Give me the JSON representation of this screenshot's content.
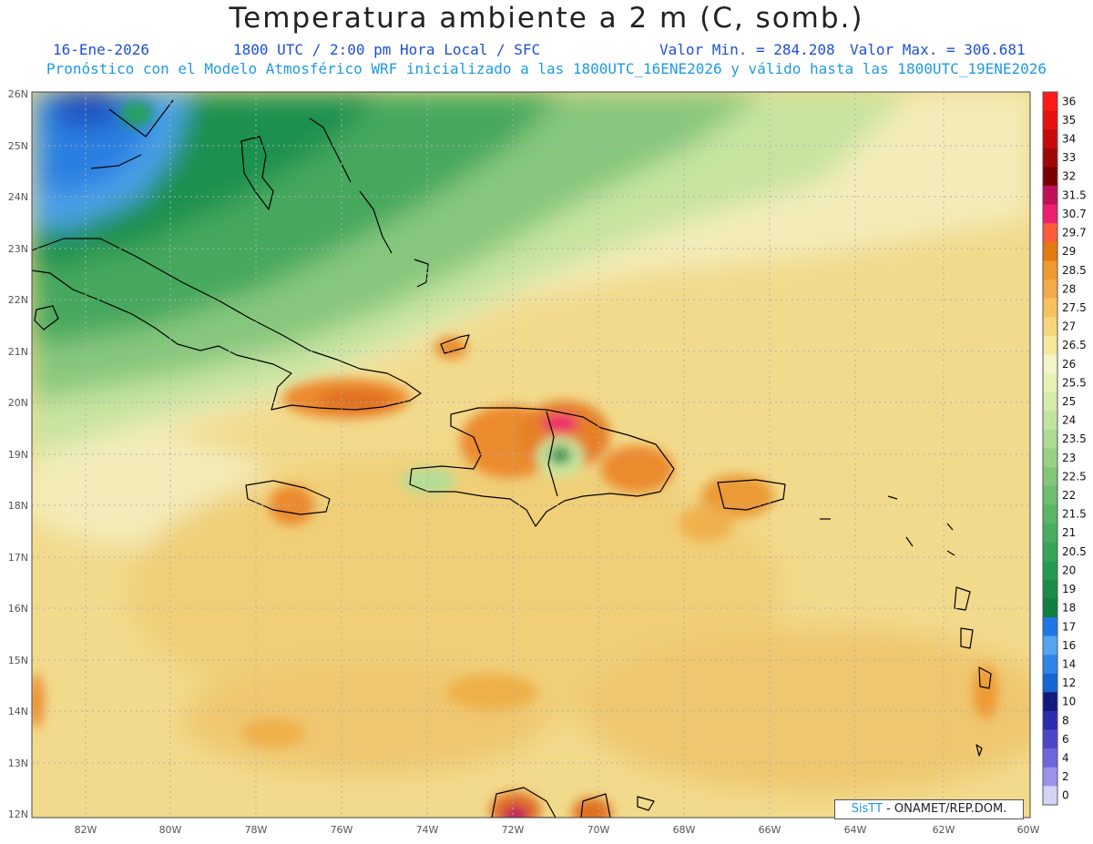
{
  "header": {
    "title": "Temperatura ambiente a 2 m (C, somb.)",
    "date": "16-Ene-2026",
    "time": "1800 UTC / 2:00 pm Hora Local / SFC",
    "min_label": "Valor Min. = 284.208",
    "max_label": "Valor Max. = 306.681",
    "subtitle": "Pronóstico con el Modelo Atmosférico WRF inicializado a las 1800UTC_16ENE2026 y válido hasta las  1800UTC_19ENE2026"
  },
  "axes": {
    "lat_labels": [
      "26N",
      "25N",
      "24N",
      "23N",
      "22N",
      "21N",
      "20N",
      "19N",
      "18N",
      "17N",
      "16N",
      "15N",
      "14N",
      "13N",
      "12N"
    ],
    "lon_labels": [
      "82W",
      "80W",
      "78W",
      "76W",
      "74W",
      "72W",
      "70W",
      "68W",
      "66W",
      "64W",
      "62W",
      "60W"
    ]
  },
  "colorbar": {
    "labels": [
      "36",
      "35",
      "34",
      "33",
      "32",
      "31.5",
      "30.7",
      "29.7",
      "29",
      "28.5",
      "28",
      "27.5",
      "27",
      "26.5",
      "26",
      "25.5",
      "25",
      "24",
      "23.5",
      "23",
      "22.5",
      "22",
      "21.5",
      "21",
      "20.5",
      "20",
      "19",
      "18",
      "17",
      "16",
      "14",
      "12",
      "10",
      "8",
      "6",
      "4",
      "2",
      "0"
    ],
    "colors": [
      "#ff1a1a",
      "#e61010",
      "#c80a0a",
      "#a00808",
      "#7a0000",
      "#c0105a",
      "#ee1f70",
      "#ff5a3c",
      "#e27a12",
      "#ef9a30",
      "#f3aa4a",
      "#f6c25e",
      "#f6d57c",
      "#f7e79d",
      "#f5f3c8",
      "#e6f3b4",
      "#d4ecaa",
      "#c2e59e",
      "#acdb92",
      "#98d185",
      "#82c67a",
      "#6ebd70",
      "#5ab566",
      "#49ad60",
      "#38a45a",
      "#279a52",
      "#1a8c48",
      "#0f7e40",
      "#1f77e6",
      "#54a4ee",
      "#2e86e8",
      "#1565d4",
      "#121a7c",
      "#2c2bb0",
      "#4c46c9",
      "#6f66dc",
      "#9b93ec",
      "#d4d4f8"
    ]
  },
  "credit": {
    "brand": "SisTT",
    "text": "- ONAMET/REP.DOM."
  }
}
